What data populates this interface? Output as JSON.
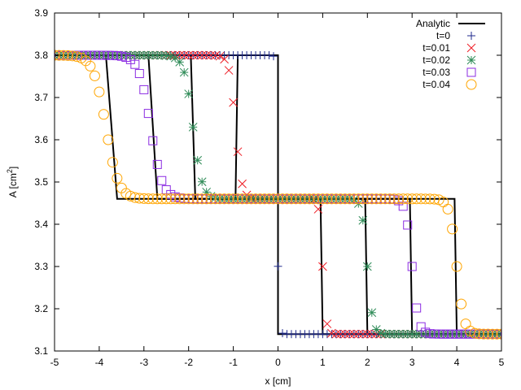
{
  "chart_data": {
    "type": "scatter",
    "xlabel_text": "x [cm]",
    "ylabel_prefix": "A [cm",
    "ylabel_sup": "2",
    "ylabel_suffix": "]",
    "xlim": [
      -5,
      5
    ],
    "ylim": [
      3.1,
      3.9
    ],
    "xticks": [
      -5,
      -4,
      -3,
      -2,
      -1,
      0,
      1,
      2,
      3,
      4,
      5
    ],
    "yticks": [
      3.1,
      3.2,
      3.3,
      3.4,
      3.5,
      3.6,
      3.7,
      3.8,
      3.9
    ],
    "grid": false,
    "legend_position": "top-right",
    "analytic": {
      "name": "Analytic",
      "color": "#000000",
      "curves": [
        [
          [
            -5,
            3.8
          ],
          [
            0,
            3.8
          ],
          [
            0,
            3.14
          ],
          [
            5,
            3.14
          ]
        ],
        [
          [
            -5,
            3.8
          ],
          [
            -0.9,
            3.8
          ],
          [
            -0.95,
            3.46
          ],
          [
            0.95,
            3.46
          ],
          [
            1.0,
            3.14
          ],
          [
            5,
            3.14
          ]
        ],
        [
          [
            -5,
            3.8
          ],
          [
            -1.95,
            3.8
          ],
          [
            -1.85,
            3.46
          ],
          [
            1.95,
            3.46
          ],
          [
            2.0,
            3.14
          ],
          [
            5,
            3.14
          ]
        ],
        [
          [
            -5,
            3.8
          ],
          [
            -2.9,
            3.8
          ],
          [
            -2.7,
            3.46
          ],
          [
            2.95,
            3.46
          ],
          [
            3.0,
            3.14
          ],
          [
            5,
            3.14
          ]
        ],
        [
          [
            -5,
            3.8
          ],
          [
            -3.85,
            3.8
          ],
          [
            -3.6,
            3.46
          ],
          [
            3.95,
            3.46
          ],
          [
            4.0,
            3.14
          ],
          [
            5,
            3.14
          ]
        ]
      ]
    },
    "series": [
      {
        "name": "t=0",
        "marker": "plus",
        "color": "#1f2a8c",
        "high": 3.8,
        "mid": 3.46,
        "low": 3.14,
        "left_front": -0.0001,
        "left_width": 0.02,
        "right_front": 0.0001,
        "right_width": 0.02,
        "xmin": -5,
        "xmax": 5,
        "step": 0.1
      },
      {
        "name": "t=0.01",
        "marker": "cross",
        "color": "#ee1c24",
        "high": 3.8,
        "mid": 3.46,
        "low": 3.14,
        "left_front": -0.95,
        "left_width": 0.07,
        "right_front": 1.0,
        "right_width": 0.04,
        "xmin": -5,
        "xmax": 5,
        "step": 0.1
      },
      {
        "name": "t=0.02",
        "marker": "star",
        "color": "#2e8b57",
        "high": 3.8,
        "mid": 3.46,
        "low": 3.14,
        "left_front": -1.9,
        "left_width": 0.1,
        "right_front": 2.0,
        "right_width": 0.06,
        "xmin": -5,
        "xmax": 5,
        "step": 0.1
      },
      {
        "name": "t=0.03",
        "marker": "square",
        "color": "#8b2be2",
        "high": 3.8,
        "mid": 3.46,
        "low": 3.14,
        "left_front": -2.85,
        "left_width": 0.13,
        "right_front": 3.0,
        "right_width": 0.07,
        "xmin": -5,
        "xmax": 5,
        "step": 0.1
      },
      {
        "name": "t=0.04",
        "marker": "circle",
        "color": "#ffa500",
        "high": 3.8,
        "mid": 3.46,
        "low": 3.14,
        "left_front": -3.85,
        "left_width": 0.14,
        "right_front": 4.0,
        "right_width": 0.08,
        "xmin": -5,
        "xmax": 5,
        "step": 0.1
      }
    ]
  }
}
